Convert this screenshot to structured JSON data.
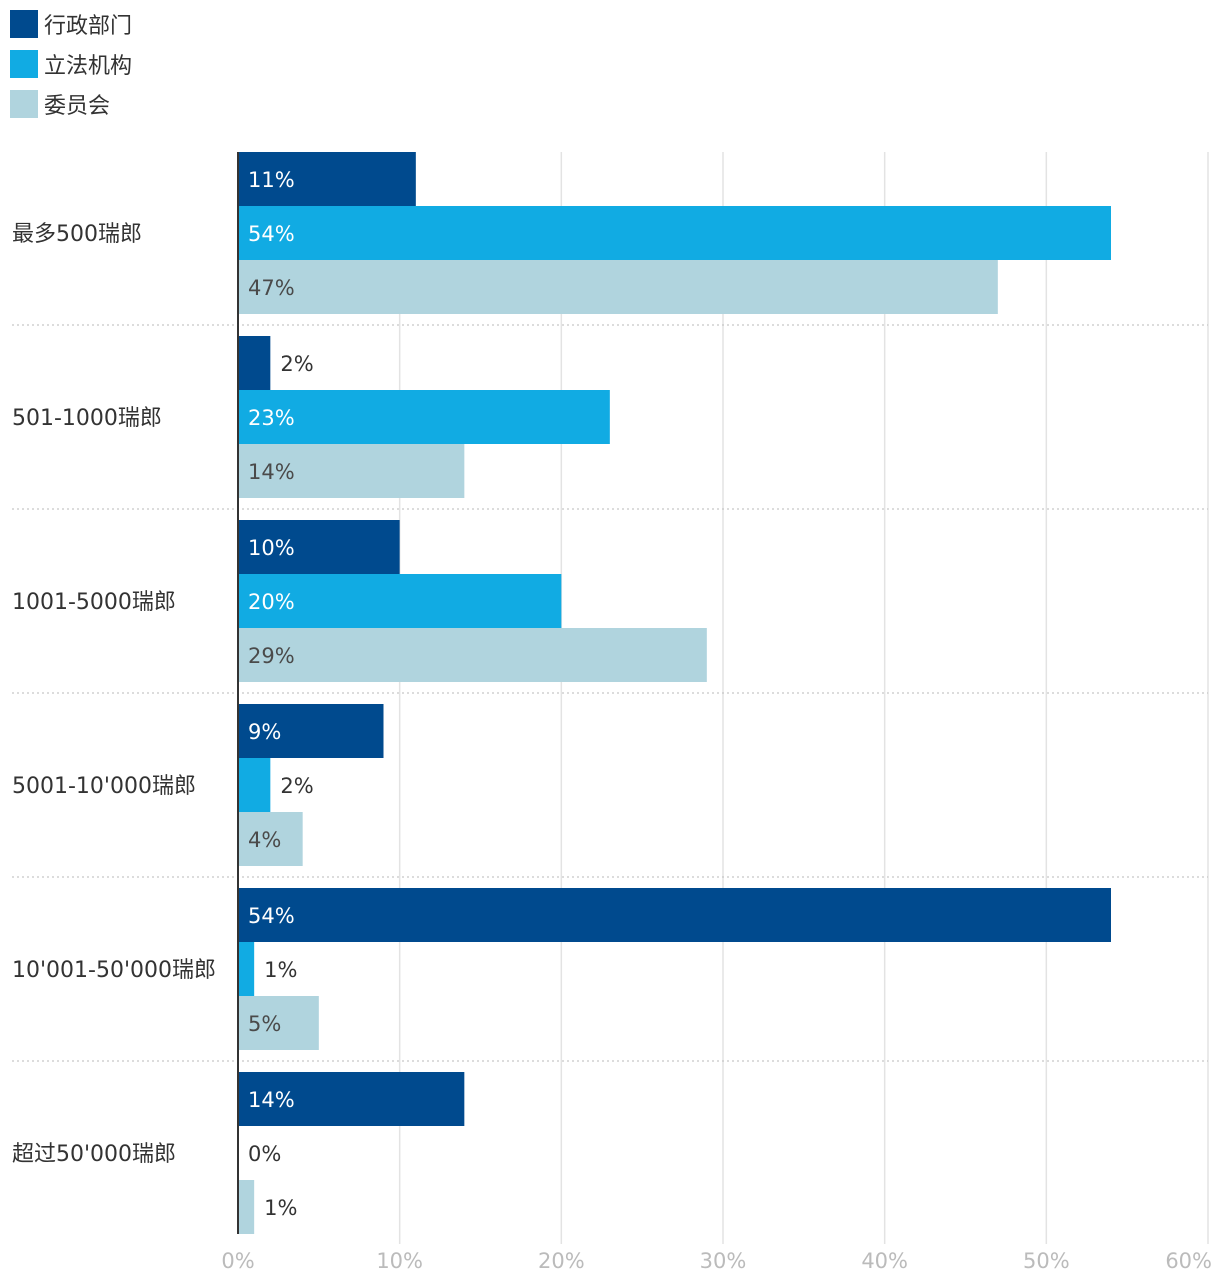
{
  "chart_data": {
    "type": "bar",
    "orientation": "horizontal",
    "categories": [
      "最多500瑞郎",
      "501-1000瑞郎",
      "1001-5000瑞郎",
      "5001-10'000瑞郎",
      "10'001-50'000瑞郎",
      "超过50'000瑞郎"
    ],
    "series": [
      {
        "name": "行政部门",
        "color": "#004a8e",
        "values": [
          11,
          2,
          10,
          9,
          54,
          14
        ],
        "labels": [
          "11%",
          "2%",
          "10%",
          "9%",
          "54%",
          "14%"
        ]
      },
      {
        "name": "立法机构",
        "color": "#11abe3",
        "values": [
          54,
          23,
          20,
          2,
          1,
          0
        ],
        "labels": [
          "54%",
          "23%",
          "20%",
          "2%",
          "1%",
          "0%"
        ]
      },
      {
        "name": "委员会",
        "color": "#b0d4de",
        "values": [
          47,
          14,
          29,
          4,
          5,
          1
        ],
        "labels": [
          "47%",
          "14%",
          "29%",
          "4%",
          "5%",
          "1%"
        ]
      }
    ],
    "xlim": [
      0,
      60
    ],
    "xticks": [
      "0%",
      "10%",
      "20%",
      "30%",
      "40%",
      "50%",
      "60%"
    ],
    "grid": true,
    "legend_position": "top-left"
  }
}
